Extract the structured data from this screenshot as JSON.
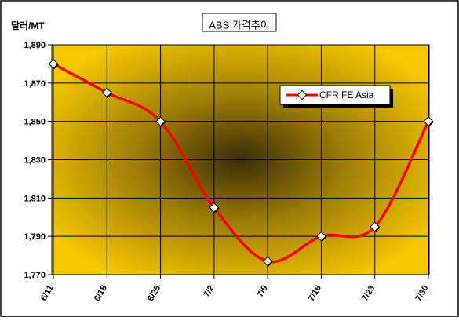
{
  "chart_data": {
    "type": "line",
    "title": "ABS 가격추이",
    "ylabel": "달러/MT",
    "xlabel": "",
    "categories": [
      "6/11",
      "6/18",
      "6/25",
      "7/2",
      "7/9",
      "7/16",
      "7/23",
      "7/30"
    ],
    "series": [
      {
        "name": "CFR FE Asia",
        "values": [
          1880,
          1865,
          1850,
          1805,
          1777,
          1790,
          1795,
          1850
        ]
      }
    ],
    "ylim": [
      1770,
      1890
    ],
    "yticks": [
      1770,
      1790,
      1810,
      1830,
      1850,
      1870,
      1890
    ],
    "ytick_labels": [
      "1,770",
      "1,790",
      "1,810",
      "1,830",
      "1,850",
      "1,870",
      "1,890"
    ],
    "grid": true,
    "legend_position": "top-right",
    "colors": {
      "series": "#ff0000",
      "plot_light": "#f5c800",
      "plot_dark": "#3a2e08",
      "marker_fill": "#ffffff"
    }
  }
}
